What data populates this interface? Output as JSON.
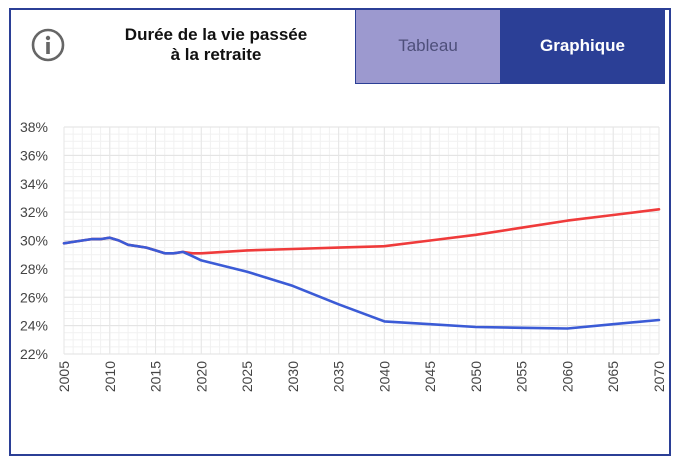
{
  "header": {
    "title_line1": "Durée de la vie passée",
    "title_line2": "à la retraite",
    "info_icon": "info-icon"
  },
  "tabs": [
    {
      "label": "Tableau",
      "active": false,
      "color": "#9c99cf"
    },
    {
      "label": "Graphique",
      "active": true,
      "color": "#2b3f96"
    }
  ],
  "chart_data": {
    "type": "line",
    "title": "",
    "xlabel": "",
    "ylabel": "",
    "xlim": [
      2005,
      2070
    ],
    "ylim": [
      22,
      38
    ],
    "x_ticks": [
      2005,
      2010,
      2015,
      2020,
      2025,
      2030,
      2035,
      2040,
      2045,
      2050,
      2055,
      2060,
      2065,
      2070
    ],
    "y_ticks": [
      22,
      24,
      26,
      28,
      30,
      32,
      34,
      36,
      38
    ],
    "y_tick_suffix": "%",
    "grid": true,
    "series": [
      {
        "color": "#ef3b3b",
        "points": [
          [
            2005,
            29.8
          ],
          [
            2006,
            29.9
          ],
          [
            2007,
            30.0
          ],
          [
            2008,
            30.1
          ],
          [
            2009,
            30.1
          ],
          [
            2010,
            30.2
          ],
          [
            2011,
            30.0
          ],
          [
            2012,
            29.7
          ],
          [
            2013,
            29.6
          ],
          [
            2014,
            29.5
          ],
          [
            2015,
            29.3
          ],
          [
            2016,
            29.1
          ],
          [
            2017,
            29.1
          ],
          [
            2018,
            29.2
          ],
          [
            2019,
            29.1
          ],
          [
            2020,
            29.1
          ],
          [
            2025,
            29.3
          ],
          [
            2030,
            29.4
          ],
          [
            2035,
            29.5
          ],
          [
            2040,
            29.6
          ],
          [
            2045,
            30.0
          ],
          [
            2050,
            30.4
          ],
          [
            2055,
            30.9
          ],
          [
            2060,
            31.4
          ],
          [
            2065,
            31.8
          ],
          [
            2070,
            32.2
          ]
        ]
      },
      {
        "color": "#3b5bd6",
        "points": [
          [
            2005,
            29.8
          ],
          [
            2006,
            29.9
          ],
          [
            2007,
            30.0
          ],
          [
            2008,
            30.1
          ],
          [
            2009,
            30.1
          ],
          [
            2010,
            30.2
          ],
          [
            2011,
            30.0
          ],
          [
            2012,
            29.7
          ],
          [
            2013,
            29.6
          ],
          [
            2014,
            29.5
          ],
          [
            2015,
            29.3
          ],
          [
            2016,
            29.1
          ],
          [
            2017,
            29.1
          ],
          [
            2018,
            29.2
          ],
          [
            2019,
            28.9
          ],
          [
            2020,
            28.6
          ],
          [
            2025,
            27.8
          ],
          [
            2030,
            26.8
          ],
          [
            2035,
            25.5
          ],
          [
            2040,
            24.3
          ],
          [
            2045,
            24.1
          ],
          [
            2050,
            23.9
          ],
          [
            2055,
            23.85
          ],
          [
            2060,
            23.8
          ],
          [
            2065,
            24.1
          ],
          [
            2070,
            24.4
          ]
        ]
      }
    ]
  }
}
